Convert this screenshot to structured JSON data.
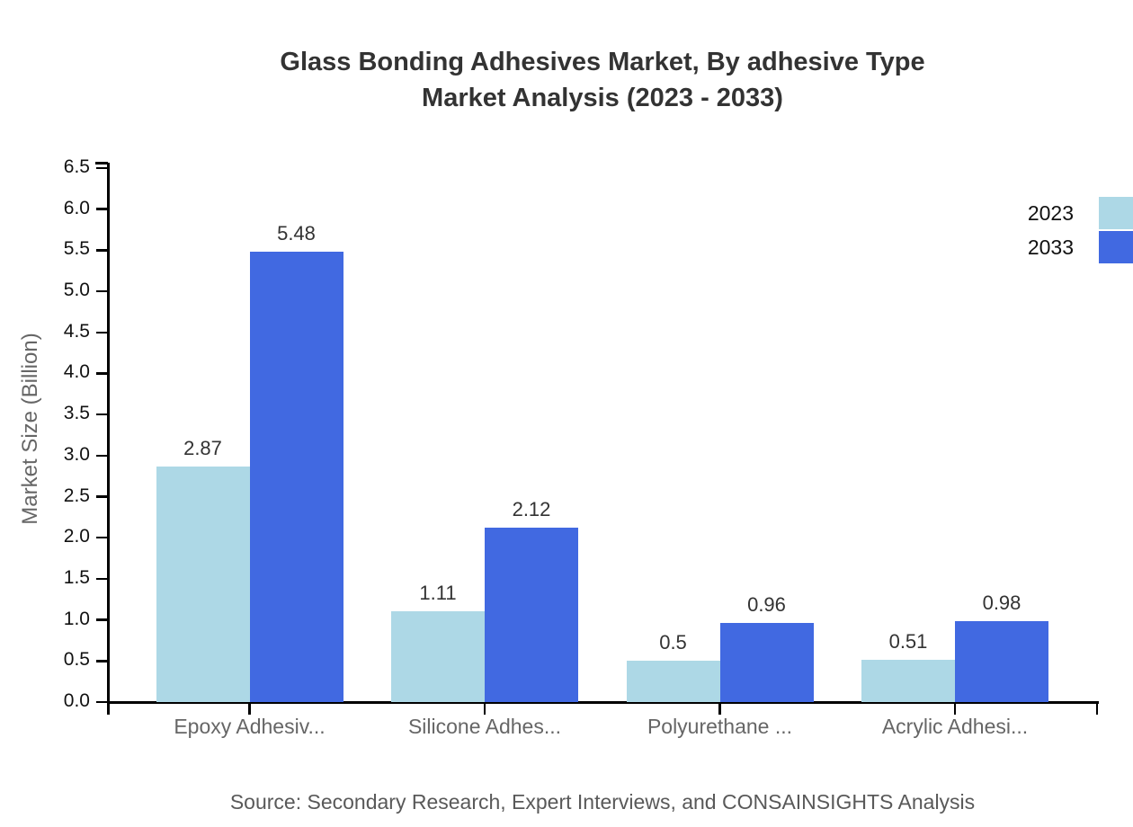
{
  "title": {
    "line1": "Glass Bonding Adhesives Market, By adhesive Type",
    "line2": "Market Analysis (2023 - 2033)"
  },
  "footer": {
    "source": "Source: Secondary Research, Expert Interviews, and CONSAINSIGHTS Analysis"
  },
  "chart_data": {
    "type": "bar",
    "title": "Glass Bonding Adhesives Market, By adhesive Type",
    "subtitle": "Market Analysis (2023 - 2033)",
    "categories": [
      "Epoxy Adhesiv...",
      "Silicone Adhes...",
      "Polyurethane ...",
      "Acrylic Adhesi..."
    ],
    "series": [
      {
        "name": "2023",
        "color": "#ADD8E6",
        "values": [
          2.87,
          1.11,
          0.5,
          0.51
        ],
        "value_labels": [
          "2.87",
          "1.11",
          "0.5",
          "0.51"
        ]
      },
      {
        "name": "2033",
        "color": "#4169E1",
        "values": [
          5.48,
          2.12,
          0.96,
          0.98
        ],
        "value_labels": [
          "5.48",
          "2.12",
          "0.96",
          "0.98"
        ]
      }
    ],
    "xlabel": "",
    "ylabel": "Market Size (Billion)",
    "ylim": [
      0,
      6.5
    ],
    "ytick_step": 0.5,
    "grid": false,
    "legend_position": "top-right"
  }
}
